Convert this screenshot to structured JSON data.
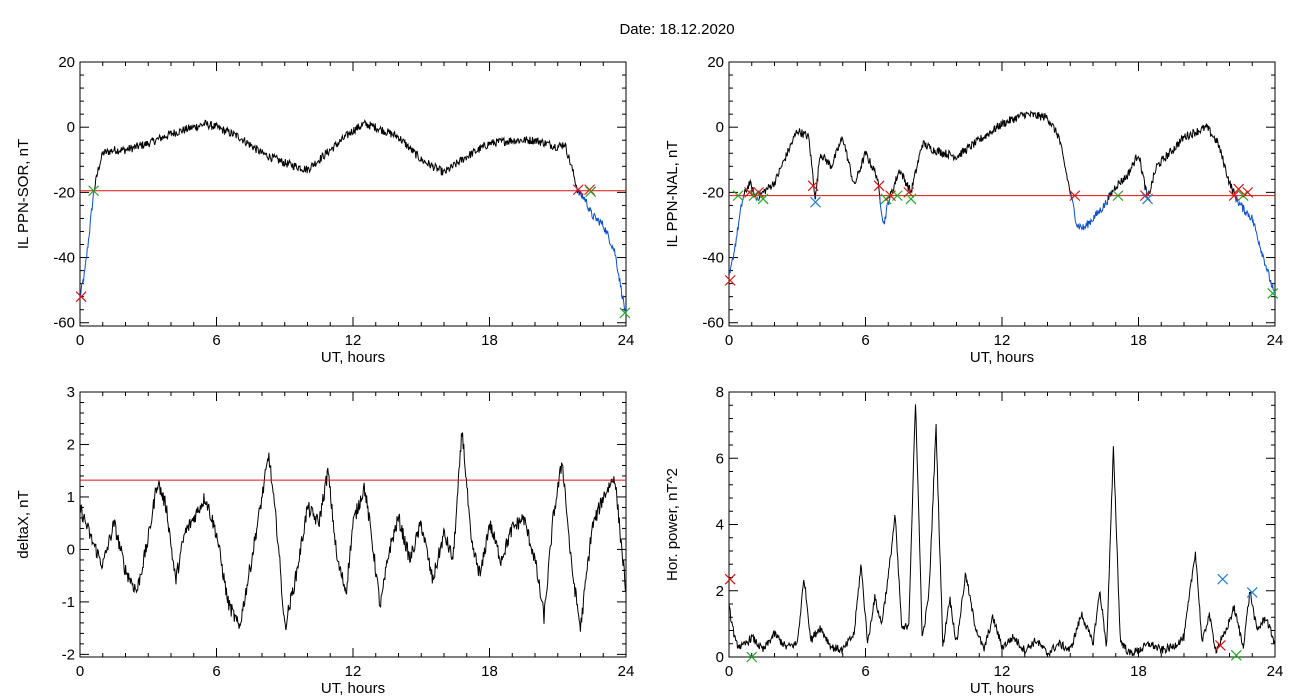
{
  "title": "Date:  18.12.2020",
  "colors": {
    "trace": "#000000",
    "quiet": "#0a4fcf",
    "threshold": "#dd1111",
    "cross_red": "#dd1111",
    "cross_green": "#22aa22",
    "cross_cyan": "#1e7fd8"
  },
  "chart_data": [
    {
      "type": "line",
      "xlabel": "UT, hours",
      "ylabel": "IL PPN-SOR, nT",
      "xlim": [
        0,
        24
      ],
      "ylim": [
        -61,
        20
      ],
      "xticks": [
        "0",
        "6",
        "12",
        "18",
        "24"
      ],
      "yticks": [
        "-60",
        "-40",
        "-20",
        "0",
        "20"
      ],
      "threshold": -19.5,
      "series": [
        {
          "x": [
            0,
            0.2,
            0.4,
            0.6,
            0.8,
            1.0,
            1.5,
            2,
            3,
            4,
            5,
            5.5,
            6,
            7,
            8,
            9,
            10,
            11,
            12,
            12.5,
            13,
            14,
            15,
            16,
            17,
            18,
            19,
            20,
            21,
            21.3,
            21.6,
            21.9,
            22.2,
            22.5,
            23,
            23.5,
            24
          ],
          "y": [
            -52,
            -45,
            -33,
            -20,
            -13,
            -8,
            -7,
            -7,
            -5,
            -2,
            0,
            1,
            0,
            -3,
            -8,
            -11,
            -13,
            -7,
            -1,
            1,
            0,
            -3,
            -10,
            -14,
            -9,
            -5,
            -4,
            -4,
            -6,
            -5,
            -12,
            -20,
            -22,
            -27,
            -30,
            -38,
            -58
          ]
        }
      ],
      "markers": [
        {
          "x": 0.05,
          "y": -52,
          "color": "red"
        },
        {
          "x": 0.6,
          "y": -19.5,
          "color": "green"
        },
        {
          "x": 21.9,
          "y": -19.2,
          "color": "red"
        },
        {
          "x": 22.4,
          "y": -19.2,
          "color": "red"
        },
        {
          "x": 22.45,
          "y": -19.8,
          "color": "green"
        },
        {
          "x": 23.95,
          "y": -57,
          "color": "green"
        }
      ]
    },
    {
      "type": "line",
      "xlabel": "UT, hours",
      "ylabel": "IL PPN-NAL, nT",
      "xlim": [
        0,
        24
      ],
      "ylim": [
        -61,
        20
      ],
      "xticks": [
        "0",
        "6",
        "12",
        "18",
        "24"
      ],
      "yticks": [
        "-60",
        "-40",
        "-20",
        "0",
        "20"
      ],
      "threshold": -21,
      "series": [
        {
          "x": [
            0,
            0.3,
            0.6,
            0.9,
            1.2,
            1.5,
            2,
            2.5,
            3,
            3.5,
            3.8,
            4,
            4.5,
            5,
            5.5,
            6,
            6.5,
            6.8,
            7,
            7.5,
            8,
            8.5,
            9,
            10,
            11,
            12,
            13,
            14,
            14.5,
            15,
            15.3,
            15.6,
            16,
            16.5,
            17,
            17.5,
            18,
            18.4,
            18.8,
            19.5,
            20,
            21,
            21.5,
            22,
            22.3,
            22.6,
            23,
            23.5,
            24
          ],
          "y": [
            -47,
            -35,
            -22,
            -17,
            -22,
            -20,
            -17,
            -9,
            -1,
            -3,
            -22,
            -8,
            -12,
            -3,
            -18,
            -8,
            -15,
            -30,
            -23,
            -13,
            -20,
            -5,
            -7,
            -9,
            -4,
            1,
            4,
            3,
            -3,
            -20,
            -30,
            -31,
            -28,
            -24,
            -18,
            -15,
            -8,
            -22,
            -12,
            -7,
            -3,
            0,
            -5,
            -17,
            -22,
            -25,
            -28,
            -40,
            -52
          ]
        }
      ],
      "markers": [
        {
          "x": 0.05,
          "y": -47,
          "color": "red"
        },
        {
          "x": 0.4,
          "y": -21,
          "color": "green"
        },
        {
          "x": 0.9,
          "y": -20,
          "color": "red"
        },
        {
          "x": 1.1,
          "y": -21,
          "color": "green"
        },
        {
          "x": 1.3,
          "y": -20,
          "color": "red"
        },
        {
          "x": 1.5,
          "y": -22,
          "color": "green"
        },
        {
          "x": 3.7,
          "y": -18,
          "color": "red"
        },
        {
          "x": 3.8,
          "y": -23,
          "color": "cyan"
        },
        {
          "x": 6.6,
          "y": -18,
          "color": "red"
        },
        {
          "x": 6.9,
          "y": -22,
          "color": "green"
        },
        {
          "x": 7.1,
          "y": -21,
          "color": "red"
        },
        {
          "x": 7.4,
          "y": -21,
          "color": "green"
        },
        {
          "x": 7.9,
          "y": -20,
          "color": "red"
        },
        {
          "x": 8.0,
          "y": -22,
          "color": "green"
        },
        {
          "x": 15.2,
          "y": -21,
          "color": "red"
        },
        {
          "x": 17.1,
          "y": -21,
          "color": "green"
        },
        {
          "x": 18.3,
          "y": -21,
          "color": "red"
        },
        {
          "x": 18.4,
          "y": -22,
          "color": "cyan"
        },
        {
          "x": 22.2,
          "y": -21,
          "color": "red"
        },
        {
          "x": 22.4,
          "y": -19,
          "color": "red"
        },
        {
          "x": 22.6,
          "y": -21,
          "color": "green"
        },
        {
          "x": 22.8,
          "y": -20,
          "color": "red"
        },
        {
          "x": 23.9,
          "y": -51,
          "color": "green"
        }
      ]
    },
    {
      "type": "line",
      "xlabel": "UT, hours",
      "ylabel": "deltaX, nT",
      "xlim": [
        0,
        24
      ],
      "ylim": [
        -2.05,
        3
      ],
      "xticks": [
        "0",
        "6",
        "12",
        "18",
        "24"
      ],
      "yticks": [
        "-2",
        "-1",
        "0",
        "1",
        "2",
        "3"
      ],
      "threshold": 1.32,
      "series": [
        {
          "x": [
            0,
            0.5,
            1,
            1.5,
            2,
            2.5,
            3,
            3.4,
            3.8,
            4.2,
            4.6,
            5,
            5.5,
            6,
            6.5,
            7,
            7.5,
            8,
            8.3,
            8.7,
            9,
            9.5,
            10,
            10.5,
            10.9,
            11.3,
            11.7,
            12,
            12.5,
            12.8,
            13.2,
            13.6,
            14,
            14.5,
            15,
            15.5,
            16,
            16.4,
            16.8,
            17.2,
            17.6,
            18,
            18.5,
            19,
            19.5,
            20,
            20.4,
            20.8,
            21.2,
            21.6,
            22,
            22.5,
            23,
            23.5,
            24
          ],
          "y": [
            0.8,
            0.2,
            -0.3,
            0.5,
            -0.4,
            -0.8,
            0.2,
            1.3,
            0.8,
            -0.6,
            0.3,
            0.6,
            1.0,
            0.3,
            -1.0,
            -1.5,
            -0.3,
            1.0,
            1.8,
            0.2,
            -1.5,
            -0.5,
            0.8,
            0.5,
            1.5,
            -0.2,
            -0.8,
            0.5,
            1.2,
            0.3,
            -1.1,
            0.0,
            0.6,
            -0.2,
            0.5,
            -0.6,
            0.3,
            -0.2,
            2.3,
            0.1,
            -0.5,
            0.5,
            -0.2,
            0.4,
            0.6,
            -0.2,
            -1.3,
            0.6,
            1.7,
            -0.3,
            -1.5,
            0.4,
            1.0,
            1.4,
            -0.8
          ]
        }
      ],
      "markers": []
    },
    {
      "type": "line",
      "xlabel": "UT, hours",
      "ylabel": "Hor. power, nT^2",
      "xlim": [
        0,
        24
      ],
      "ylim": [
        0,
        8
      ],
      "xticks": [
        "0",
        "6",
        "12",
        "18",
        "24"
      ],
      "yticks": [
        "0",
        "2",
        "4",
        "6",
        "8"
      ],
      "threshold": null,
      "series": [
        {
          "x": [
            0,
            0.3,
            0.6,
            1,
            1.5,
            2,
            2.5,
            3,
            3.3,
            3.6,
            4,
            4.5,
            5,
            5.5,
            5.8,
            6.1,
            6.4,
            6.7,
            7,
            7.3,
            7.6,
            7.9,
            8.2,
            8.5,
            8.8,
            9.1,
            9.4,
            9.7,
            10,
            10.4,
            10.8,
            11.2,
            11.6,
            12,
            12.5,
            13,
            13.5,
            14,
            14.5,
            15,
            15.5,
            16,
            16.3,
            16.6,
            16.9,
            17.2,
            17.6,
            18,
            18.5,
            19,
            19.5,
            20,
            20.5,
            20.8,
            21.1,
            21.4,
            21.8,
            22.2,
            22.6,
            22.9,
            23.2,
            23.6,
            24
          ],
          "y": [
            1.5,
            0.4,
            0.3,
            0.6,
            0.2,
            0.7,
            0.3,
            0.4,
            2.4,
            0.5,
            0.9,
            0.3,
            0.2,
            0.7,
            2.8,
            0.4,
            1.8,
            1.0,
            2.4,
            4.3,
            0.8,
            1.0,
            7.7,
            0.5,
            2.0,
            7.0,
            0.3,
            1.8,
            0.4,
            2.5,
            1.0,
            0.2,
            1.2,
            0.3,
            0.6,
            0.2,
            0.5,
            0.1,
            0.4,
            0.2,
            1.3,
            0.4,
            2.0,
            0.3,
            6.3,
            0.5,
            0.1,
            0.2,
            0.4,
            0.2,
            0.3,
            0.6,
            3.2,
            0.4,
            1.3,
            0.2,
            0.7,
            1.5,
            0.3,
            2.0,
            0.8,
            1.2,
            0.4
          ]
        }
      ],
      "markers": [
        {
          "x": 0.05,
          "y": 2.35,
          "color": "red"
        },
        {
          "x": 21.7,
          "y": 2.35,
          "color": "cyan"
        },
        {
          "x": 21.6,
          "y": 0.35,
          "color": "red"
        },
        {
          "x": 22.3,
          "y": 0.05,
          "color": "green"
        },
        {
          "x": 23.0,
          "y": 1.95,
          "color": "cyan"
        },
        {
          "x": 1.0,
          "y": 0.0,
          "color": "green"
        }
      ]
    }
  ]
}
